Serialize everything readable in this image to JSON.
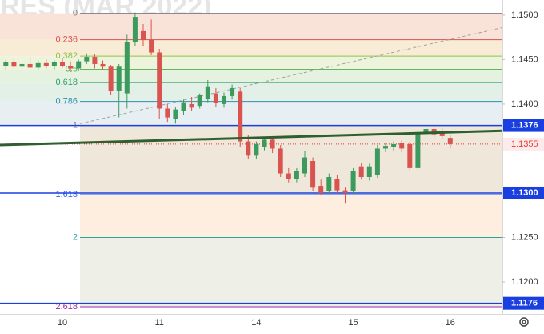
{
  "chart_data": {
    "type": "candlestick",
    "watermark": "RES (MAR 2022)",
    "categories": [
      null,
      null,
      null,
      null,
      null,
      null,
      null,
      "10",
      null,
      null,
      null,
      null,
      null,
      null,
      null,
      null,
      null,
      null,
      null,
      "11",
      null,
      null,
      null,
      null,
      null,
      null,
      null,
      null,
      null,
      null,
      null,
      "14",
      null,
      null,
      null,
      null,
      null,
      null,
      null,
      null,
      null,
      null,
      null,
      "15",
      null,
      null,
      null,
      null,
      null,
      null,
      null,
      null,
      null,
      null,
      null,
      "16"
    ],
    "ohlc": [
      [
        1.1443,
        1.145,
        1.1438,
        1.1447
      ],
      [
        1.1447,
        1.1452,
        1.144,
        1.1442
      ],
      [
        1.1442,
        1.1448,
        1.1437,
        1.1445
      ],
      [
        1.1445,
        1.1451,
        1.144,
        1.1441
      ],
      [
        1.1441,
        1.1449,
        1.1438,
        1.1446
      ],
      [
        1.1446,
        1.145,
        1.144,
        1.1443
      ],
      [
        1.1443,
        1.1449,
        1.1439,
        1.1447
      ],
      [
        1.1447,
        1.1452,
        1.1441,
        1.1443
      ],
      [
        1.1443,
        1.1448,
        1.1436,
        1.144
      ],
      [
        1.144,
        1.145,
        1.1437,
        1.1448
      ],
      [
        1.1448,
        1.1457,
        1.1445,
        1.1453
      ],
      [
        1.1453,
        1.1456,
        1.144,
        1.1445
      ],
      [
        1.1445,
        1.1449,
        1.1438,
        1.1442
      ],
      [
        1.1442,
        1.1444,
        1.141,
        1.1415
      ],
      [
        1.1415,
        1.1445,
        1.1385,
        1.1442
      ],
      [
        1.1412,
        1.1478,
        1.1395,
        1.147
      ],
      [
        1.147,
        1.1503,
        1.1465,
        1.1498
      ],
      [
        1.1482,
        1.149,
        1.1465,
        1.1472
      ],
      [
        1.1472,
        1.1495,
        1.1455,
        1.1458
      ],
      [
        1.1458,
        1.1462,
        1.1383,
        1.1395
      ],
      [
        1.1395,
        1.14,
        1.138,
        1.1385
      ],
      [
        1.1383,
        1.1397,
        1.1378,
        1.1394
      ],
      [
        1.1392,
        1.1405,
        1.1388,
        1.1402
      ],
      [
        1.14,
        1.1408,
        1.1392,
        1.1396
      ],
      [
        1.1398,
        1.1412,
        1.1395,
        1.141
      ],
      [
        1.1406,
        1.1427,
        1.1402,
        1.142
      ],
      [
        1.1412,
        1.1418,
        1.1397,
        1.1401
      ],
      [
        1.14,
        1.1413,
        1.1396,
        1.1409
      ],
      [
        1.1409,
        1.1422,
        1.1405,
        1.1418
      ],
      [
        1.1414,
        1.1418,
        1.1352,
        1.1358
      ],
      [
        1.1358,
        1.1365,
        1.1338,
        1.1342
      ],
      [
        1.1342,
        1.1358,
        1.1338,
        1.1355
      ],
      [
        1.1352,
        1.1363,
        1.1348,
        1.136
      ],
      [
        1.136,
        1.1362,
        1.1345,
        1.135
      ],
      [
        1.135,
        1.1354,
        1.1318,
        1.1322
      ],
      [
        1.1322,
        1.1328,
        1.1312,
        1.1316
      ],
      [
        1.1316,
        1.1328,
        1.1312,
        1.1325
      ],
      [
        1.1322,
        1.1347,
        1.1318,
        1.134
      ],
      [
        1.1336,
        1.134,
        1.1302,
        1.1306
      ],
      [
        1.1308,
        1.1315,
        1.1298,
        1.13
      ],
      [
        1.1302,
        1.1322,
        1.1299,
        1.1318
      ],
      [
        1.1316,
        1.132,
        1.13,
        1.1303
      ],
      [
        1.1303,
        1.1306,
        1.1288,
        1.13
      ],
      [
        1.1302,
        1.1328,
        1.1299,
        1.1325
      ],
      [
        1.133,
        1.1334,
        1.1315,
        1.1318
      ],
      [
        1.1318,
        1.1333,
        1.1314,
        1.133
      ],
      [
        1.132,
        1.1354,
        1.1317,
        1.135
      ],
      [
        1.135,
        1.1356,
        1.1346,
        1.1353
      ],
      [
        1.1352,
        1.1358,
        1.1347,
        1.1355
      ],
      [
        1.1356,
        1.1359,
        1.1346,
        1.135
      ],
      [
        1.1355,
        1.1358,
        1.1326,
        1.1328
      ],
      [
        1.1328,
        1.137,
        1.1326,
        1.1368
      ],
      [
        1.1368,
        1.138,
        1.1362,
        1.1372
      ],
      [
        1.1372,
        1.1375,
        1.1362,
        1.1366
      ],
      [
        1.137,
        1.1373,
        1.136,
        1.1364
      ],
      [
        1.1362,
        1.1365,
        1.135,
        1.1355
      ]
    ],
    "up_color": "#3c9a5f",
    "down_color": "#d9534f",
    "ylim": [
      1.1164,
      1.1517
    ],
    "yticks": [
      {
        "value": 1.15,
        "label": "1.1500"
      },
      {
        "value": 1.145,
        "label": "1.1450"
      },
      {
        "value": 1.14,
        "label": "1.1400"
      },
      {
        "value": 1.125,
        "label": "1.1250"
      },
      {
        "value": 1.12,
        "label": "1.1200"
      }
    ],
    "fib": {
      "start": 1.1502,
      "end": 1.1376,
      "levels": [
        {
          "ratio": 0,
          "color": "#787b86",
          "fill": "#f9e3d8"
        },
        {
          "ratio": 0.236,
          "color": "#d9534f",
          "fill": "#f8ecd6"
        },
        {
          "ratio": 0.382,
          "color": "#8bc34a",
          "fill": "#eef4dc"
        },
        {
          "ratio": 0.5,
          "color": "#4caf50",
          "fill": "#e5f2df"
        },
        {
          "ratio": 0.618,
          "color": "#2e9e6e",
          "fill": "#e3f0e8"
        },
        {
          "ratio": 0.786,
          "color": "#2d8fb3",
          "fill": "#e7eff2"
        },
        {
          "ratio": 1,
          "color": "#787b86",
          "fill": "#efe8da"
        },
        {
          "ratio": 1.618,
          "color": "#2962ff",
          "fill": "#fdeee0"
        },
        {
          "ratio": 2,
          "color": "#26a69a",
          "fill": "#eef0e8"
        },
        {
          "ratio": 2.618,
          "color": "#9c27b0"
        }
      ]
    },
    "trendline": {
      "start": 1.1354,
      "end": 1.137,
      "color": "#2f5f2f"
    },
    "channel_line": {
      "start": 1.1378,
      "end": 1.1486,
      "color": "#a0a0a0"
    },
    "hlines": [
      {
        "value": 1.1376,
        "label": "1.1376"
      },
      {
        "value": 1.13,
        "label": "1.1300"
      },
      {
        "value": 1.1176,
        "label": "1.1176"
      }
    ],
    "hline_color": "#1a3fe0",
    "last_price": {
      "value": 1.1355,
      "label": "1.1355",
      "color": "#e53935"
    }
  }
}
